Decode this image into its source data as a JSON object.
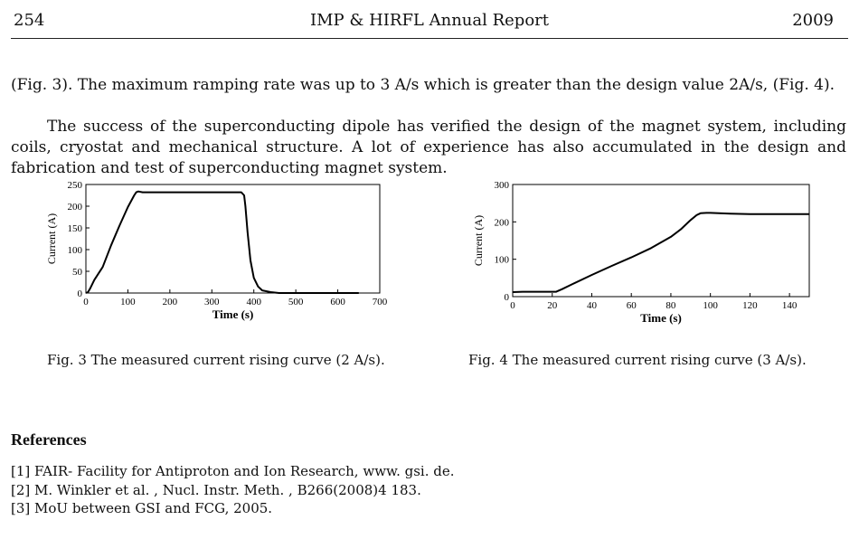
{
  "header": {
    "page_number": "254",
    "title": "IMP & HIRFL Annual Report",
    "year": "2009"
  },
  "body": {
    "paragraph1": "(Fig. 3). The maximum ramping rate was up to 3 A/s which is greater than the design value 2A/s, (Fig. 4).",
    "paragraph2": "The success of the superconducting dipole has verified the design of the magnet system, including coils, cryostat and mechanical structure. A lot of experience has also accumulated in the design and fabrication and test of superconducting magnet system."
  },
  "figures": {
    "fig3_caption": "Fig. 3   The measured current rising curve (2 A/s).",
    "fig4_caption": "Fig. 4   The measured current rising curve (3 A/s)."
  },
  "chart_data": [
    {
      "type": "line",
      "title": "",
      "xlabel": "Time (s)",
      "ylabel": "Current (A)",
      "xlim": [
        0,
        700
      ],
      "ylim": [
        0,
        250
      ],
      "xticks": [
        0,
        100,
        200,
        300,
        400,
        500,
        600,
        700
      ],
      "yticks": [
        0,
        50,
        100,
        150,
        200,
        250
      ],
      "series": [
        {
          "name": "Current",
          "x": [
            0,
            5,
            10,
            20,
            40,
            60,
            80,
            100,
            115,
            120,
            125,
            135,
            200,
            300,
            370,
            377,
            380,
            385,
            392,
            400,
            410,
            420,
            440,
            460,
            500,
            600,
            650
          ],
          "y": [
            0,
            2,
            10,
            30,
            60,
            110,
            155,
            198,
            225,
            232,
            234,
            232,
            232,
            232,
            232,
            225,
            200,
            140,
            75,
            35,
            15,
            6,
            2,
            0,
            0,
            0,
            0
          ]
        }
      ]
    },
    {
      "type": "line",
      "title": "",
      "xlabel": "Time (s)",
      "ylabel": "Current (A)",
      "xlim": [
        0,
        150
      ],
      "ylim": [
        0,
        300
      ],
      "xticks": [
        0,
        20,
        40,
        60,
        80,
        100,
        120,
        140
      ],
      "yticks": [
        0,
        100,
        200,
        300
      ],
      "series": [
        {
          "name": "Current",
          "x": [
            0,
            5,
            10,
            15,
            20,
            22,
            25,
            30,
            40,
            50,
            60,
            70,
            80,
            85,
            90,
            93,
            95,
            98,
            100,
            110,
            120,
            130,
            140,
            150
          ],
          "y": [
            12,
            13,
            13,
            13,
            13,
            13,
            20,
            33,
            58,
            82,
            105,
            130,
            160,
            180,
            205,
            218,
            223,
            224,
            224,
            222,
            221,
            221,
            221,
            221
          ]
        }
      ]
    }
  ],
  "references": {
    "title": "References",
    "items": [
      "[1] FAIR- Facility for Antiproton and Ion Research, www. gsi. de.",
      "[2] M. Winkler et al. , Nucl. Instr. Meth. , B266(2008)4 183.",
      "[3] MoU between GSI and FCG, 2005."
    ]
  }
}
